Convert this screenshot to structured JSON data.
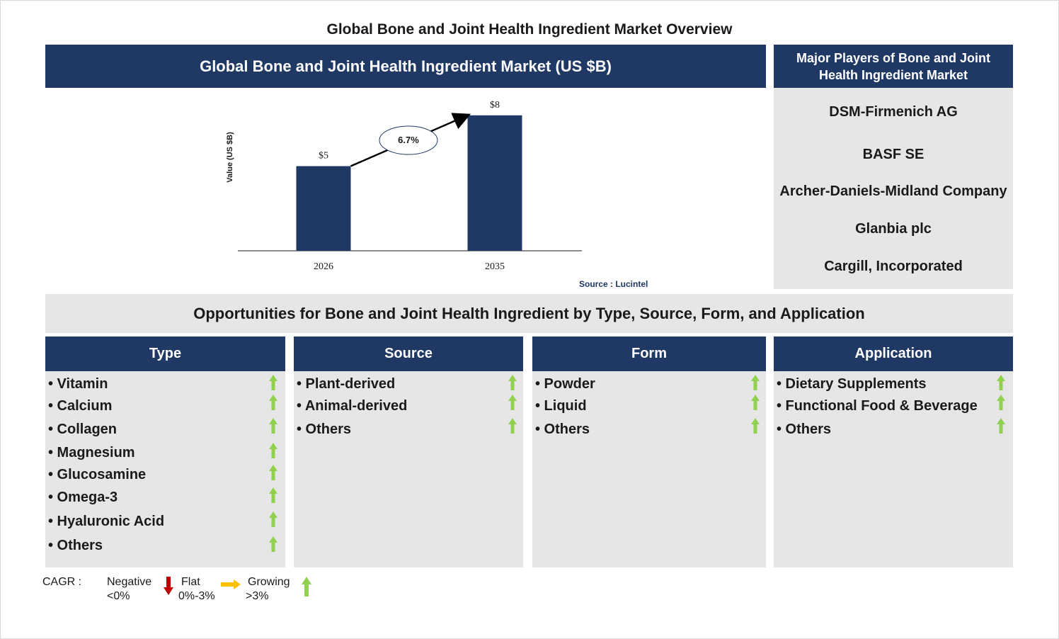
{
  "page_title": "Global Bone and Joint Health Ingredient Market Overview",
  "market_header": "Global Bone and Joint Health Ingredient Market (US $B)",
  "players": {
    "header": "Major Players of Bone and Joint Health Ingredient Market",
    "items": [
      "DSM-Firmenich AG",
      "BASF SE",
      "Archer-Daniels-Midland Company",
      "Glanbia plc",
      "Cargill, Incorporated"
    ]
  },
  "chart_data": {
    "type": "bar",
    "categories": [
      "2026",
      "2035"
    ],
    "values": [
      5,
      8
    ],
    "data_labels": [
      "$5",
      "$8"
    ],
    "ylabel": "Value (US $B)",
    "cagr_label": "6.7%",
    "source": "Source : Lucintel",
    "bar_color": "#1f3864"
  },
  "opportunities_title": "Opportunities for Bone and Joint Health Ingredient by Type, Source, Form, and Application",
  "segments": [
    {
      "title": "Type",
      "items": [
        "• Vitamin",
        "• Calcium",
        "• Collagen",
        "• Magnesium",
        "• Glucosamine",
        "• Omega-3",
        "• Hyaluronic Acid",
        "• Others"
      ],
      "trend": "growing"
    },
    {
      "title": "Source",
      "items": [
        "• Plant-derived",
        "• Animal-derived",
        "• Others"
      ],
      "trend": "growing"
    },
    {
      "title": "Form",
      "items": [
        "• Powder",
        "• Liquid",
        "• Others"
      ],
      "trend": "growing"
    },
    {
      "title": "Application",
      "items": [
        "• Dietary Supplements",
        "• Functional Food & Beverage",
        "• Others"
      ],
      "trend": "growing"
    }
  ],
  "legend": {
    "label": "CAGR :",
    "negative": "Negative",
    "negative_range": "<0%",
    "flat": "Flat",
    "flat_range": "0%-3%",
    "growing": "Growing",
    "growing_range": ">3%"
  },
  "colors": {
    "navy": "#1f3864",
    "panel_grey": "#e6e6e6",
    "growing_arrow": "#92d050",
    "flat_arrow": "#ffc000",
    "negative_arrow": "#c00000"
  }
}
